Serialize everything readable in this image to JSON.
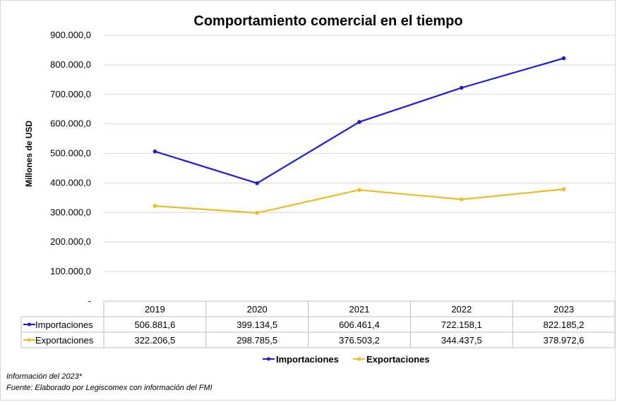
{
  "chart_data": {
    "type": "line",
    "title": "Comportamiento comercial en el tiempo",
    "ylabel": "Millones de USD",
    "xlabel": "",
    "categories": [
      "2019",
      "2020",
      "2021",
      "2022",
      "2023"
    ],
    "ylim": [
      0,
      900000
    ],
    "y_ticks": [
      "-",
      "100.000,0",
      "200.000,0",
      "300.000,0",
      "400.000,0",
      "500.000,0",
      "600.000,0",
      "700.000,0",
      "800.000,0",
      "900.000,0"
    ],
    "grid": true,
    "legend_position": "bottom",
    "series": [
      {
        "name": "Importaciones",
        "color": "#1a1ae6",
        "values": [
          506881.6,
          399134.5,
          606461.4,
          722158.1,
          822185.2
        ],
        "labels": [
          "506.881,6",
          "399.134,5",
          "606.461,4",
          "722.158,1",
          "822.185,2"
        ]
      },
      {
        "name": "Exportaciones",
        "color": "#f2b91c",
        "values": [
          322206.5,
          298785.5,
          376503.2,
          344437.5,
          378972.6
        ],
        "labels": [
          "322.206,5",
          "298.785,5",
          "376.503,2",
          "344.437,5",
          "378.972,6"
        ]
      }
    ]
  },
  "notes": {
    "line1": "Información del 2023*",
    "line2": "Fuente: Elaborado por Legiscomex con información del FMI"
  }
}
